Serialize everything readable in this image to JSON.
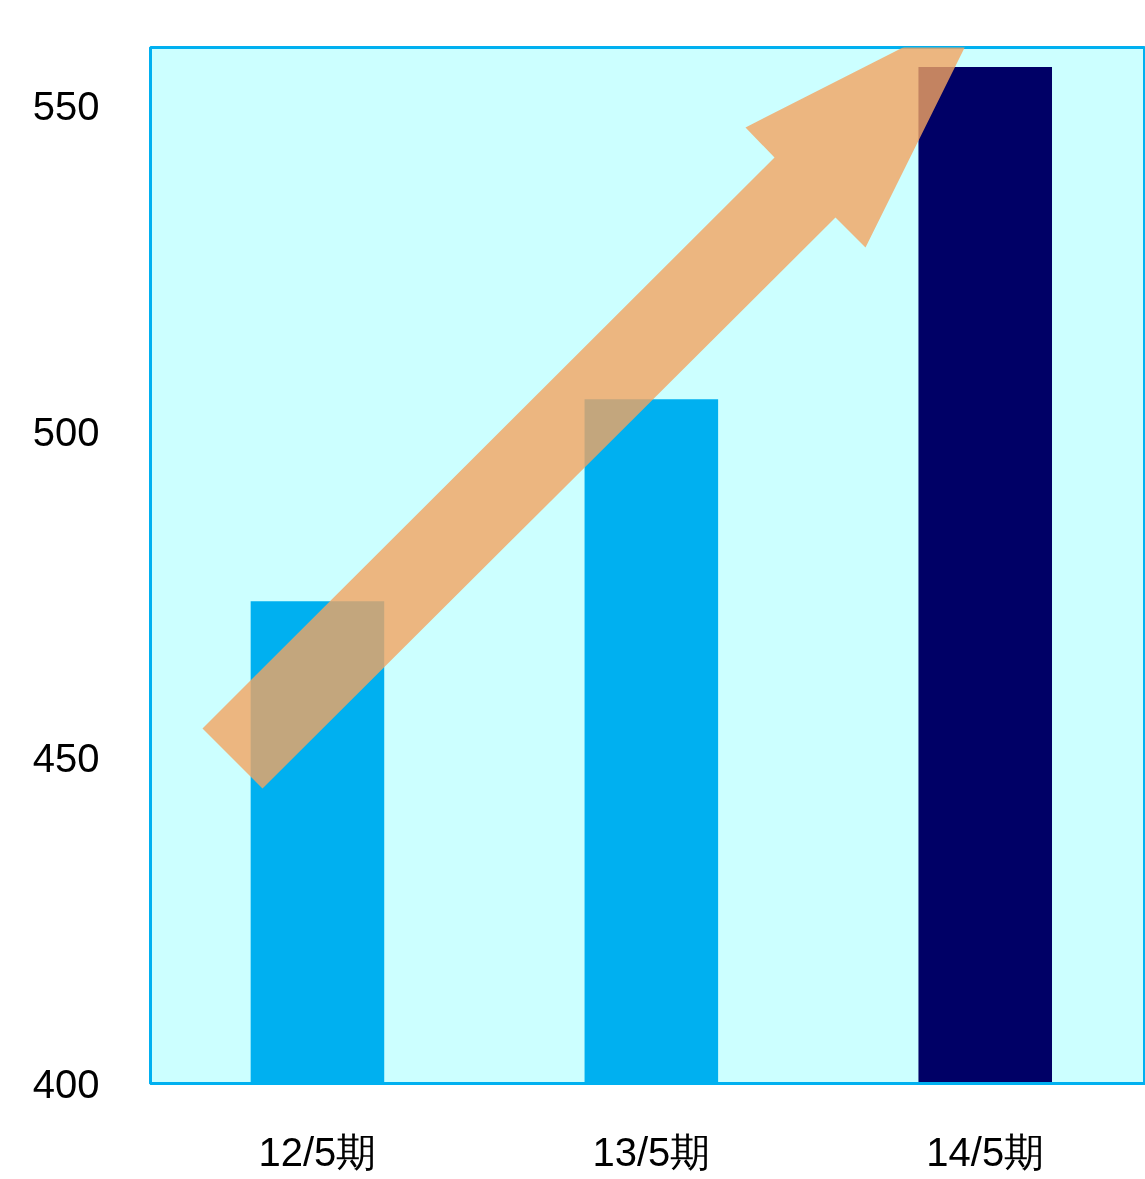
{
  "chart_data": {
    "type": "bar",
    "categories": [
      "12/5期",
      "13/5期",
      "14/5期"
    ],
    "values": [
      474,
      505,
      556
    ],
    "colors": [
      "#00b0f0",
      "#00b0f0",
      "#000066"
    ],
    "ylim": [
      400,
      559
    ],
    "yticks": [
      400,
      450,
      500,
      550
    ],
    "grid": false
  }
}
